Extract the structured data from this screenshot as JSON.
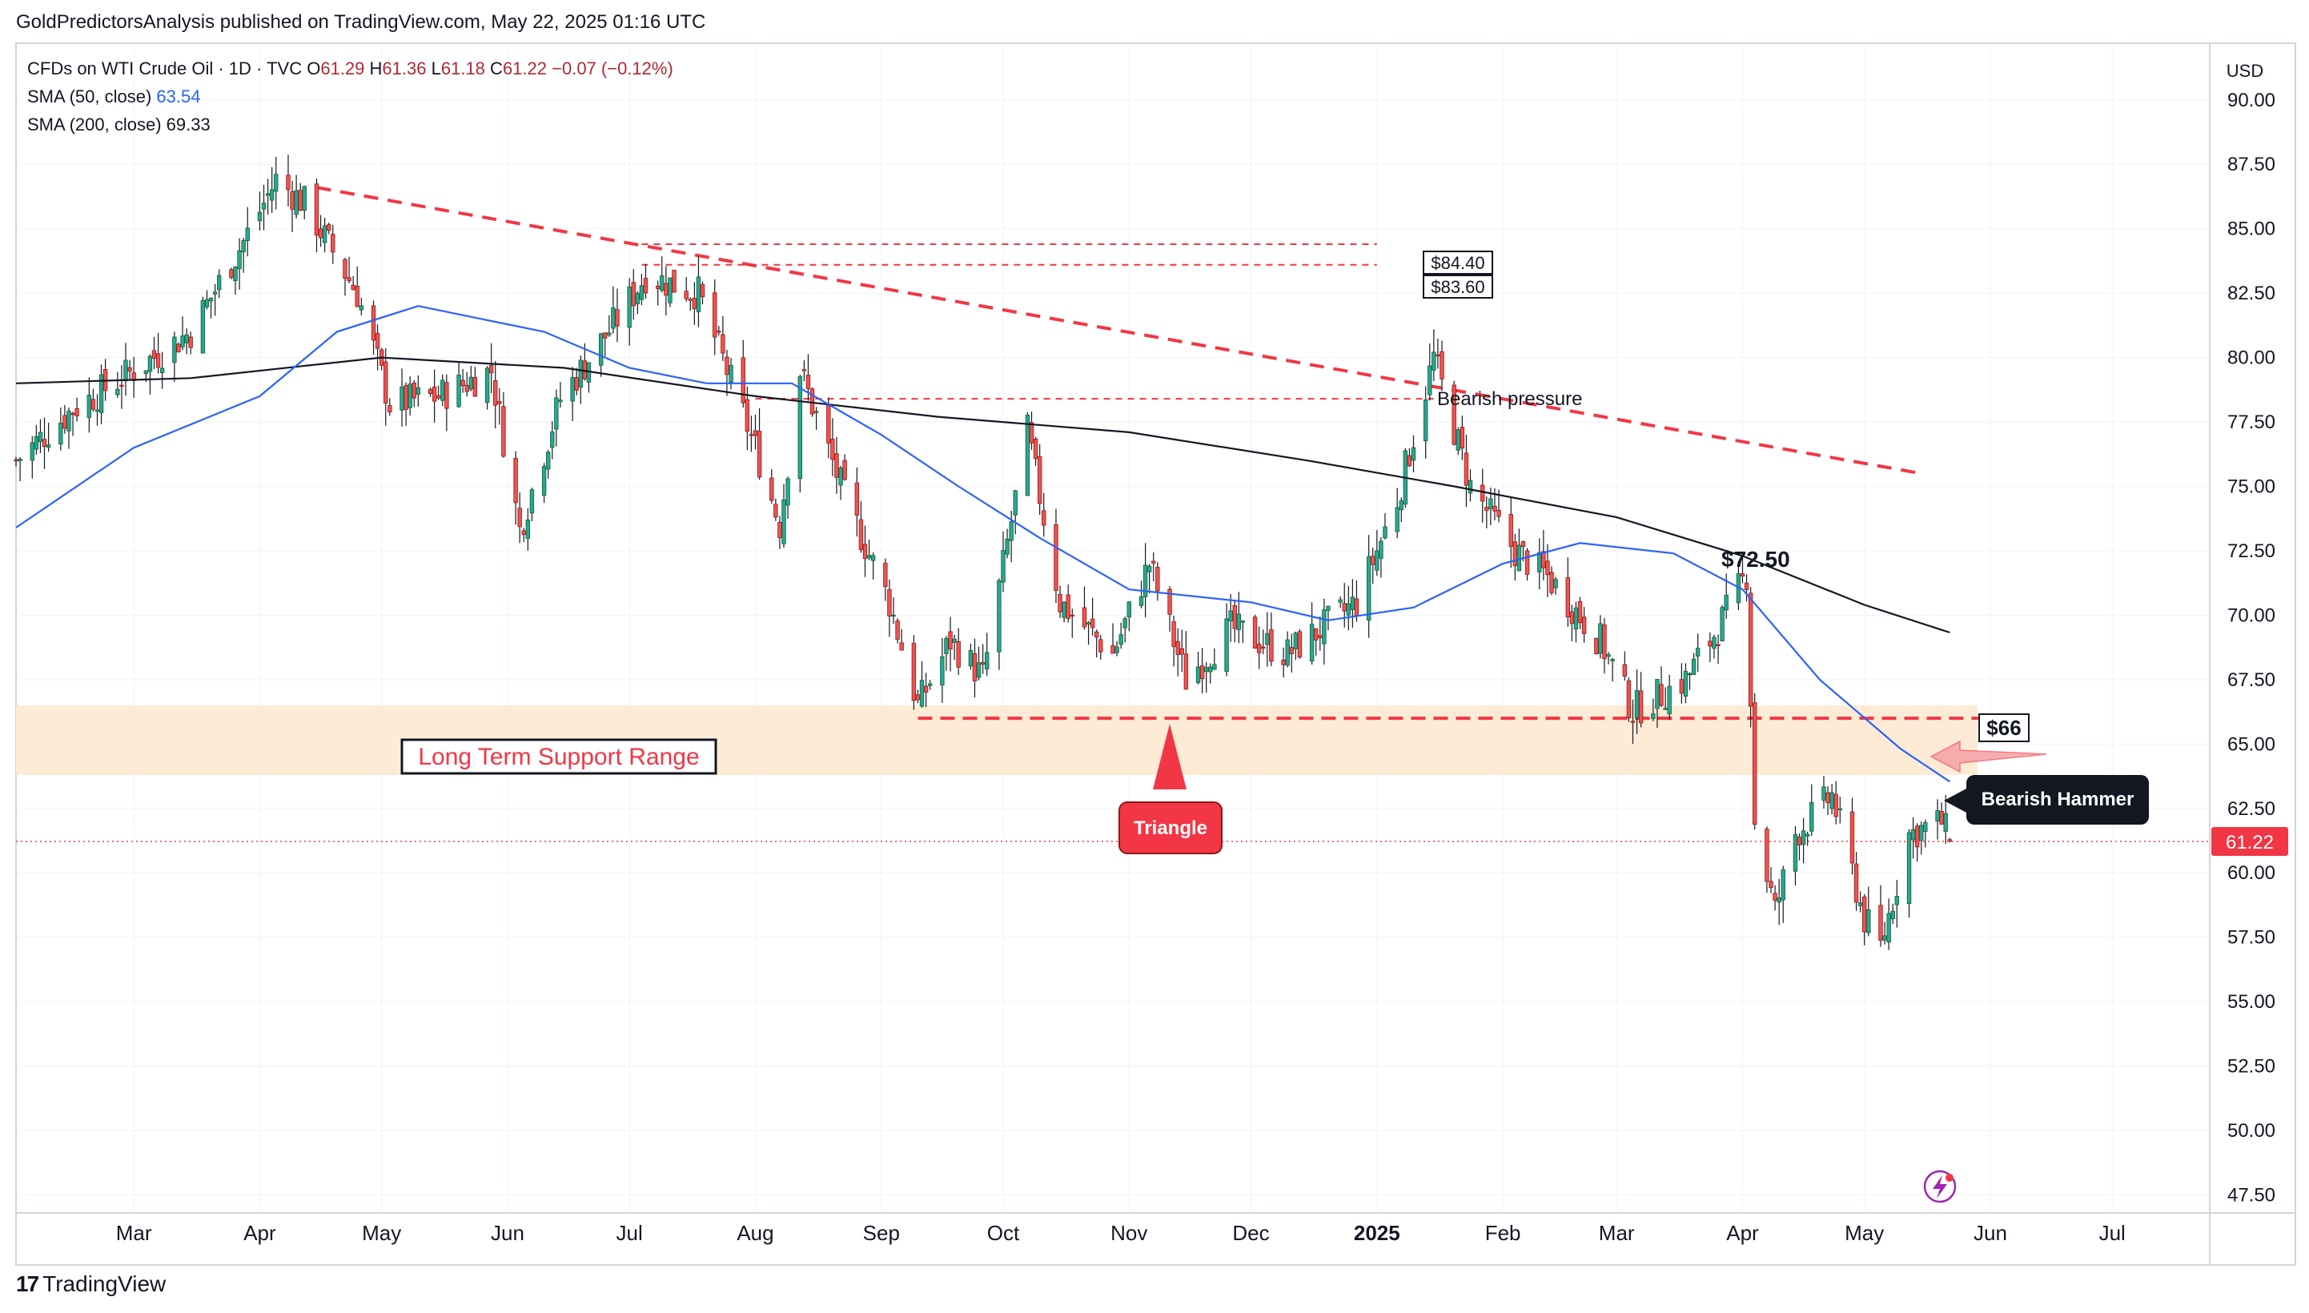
{
  "publisher": "GoldPredictorsAnalysis published on TradingView.com, May 22, 2025 01:16 UTC",
  "legend": {
    "title": "CFDs on WTI Crude Oil · 1D · TVC",
    "ohlc": {
      "o_label": "O",
      "o": "61.29",
      "h_label": "H",
      "h": "61.36",
      "l_label": "L",
      "l": "61.18",
      "c_label": "C",
      "c": "61.22",
      "change": "−0.07 (−0.12%)"
    },
    "sma50": {
      "label": "SMA (50, close)",
      "value": "63.54"
    },
    "sma200": {
      "label": "SMA (200, close)",
      "value": "69.33"
    }
  },
  "currency": "USD",
  "last_price_badge": "61.22",
  "footer": {
    "logo_mark": "17",
    "logo_text": "TradingView"
  },
  "colors": {
    "up": "#26a69a",
    "down": "#ef5350",
    "candle_border_up": "#1b5e20",
    "candle_border_down": "#8b1a1a",
    "sma50": "#2962ff",
    "sma200": "#131722",
    "trend": "#f23645",
    "zone": "#fdebd6",
    "price_badge": "#f23645",
    "axis_text": "#131722",
    "grid": "#f0f3fa"
  },
  "chart_data": {
    "type": "candlestick",
    "title": "CFDs on WTI Crude Oil · 1D · TVC",
    "x_tick_labels": [
      "Mar",
      "Apr",
      "May",
      "Jun",
      "Jul",
      "Aug",
      "Sep",
      "Oct",
      "Nov",
      "Dec",
      "2025",
      "Feb",
      "Mar",
      "Apr",
      "May",
      "Jun",
      "Jul"
    ],
    "x_tick_dates": [
      "2024-03-01",
      "2024-04-01",
      "2024-05-01",
      "2024-06-01",
      "2024-07-01",
      "2024-08-01",
      "2024-09-01",
      "2024-10-01",
      "2024-11-01",
      "2024-12-01",
      "2025-01-01",
      "2025-02-01",
      "2025-03-01",
      "2025-04-01",
      "2025-05-01",
      "2025-06-01",
      "2025-07-01"
    ],
    "x_range": [
      "2024-02-01",
      "2025-07-25"
    ],
    "y_ticks": [
      "90.00",
      "87.50",
      "85.00",
      "82.50",
      "80.00",
      "77.50",
      "75.00",
      "72.50",
      "70.00",
      "67.50",
      "65.00",
      "62.50",
      "60.00",
      "57.50",
      "55.00",
      "52.50",
      "50.00",
      "47.50"
    ],
    "ylim": [
      46.8,
      92.2
    ],
    "price_anchors": [
      {
        "date": "2024-02-01",
        "close": 76.0
      },
      {
        "date": "2024-02-15",
        "close": 78.0
      },
      {
        "date": "2024-03-01",
        "close": 79.5
      },
      {
        "date": "2024-03-15",
        "close": 81.0
      },
      {
        "date": "2024-03-28",
        "close": 84.5
      },
      {
        "date": "2024-04-05",
        "close": 86.9
      },
      {
        "date": "2024-04-12",
        "close": 86.0
      },
      {
        "date": "2024-04-25",
        "close": 82.5
      },
      {
        "date": "2024-05-03",
        "close": 78.2
      },
      {
        "date": "2024-05-15",
        "close": 78.5
      },
      {
        "date": "2024-05-28",
        "close": 79.5
      },
      {
        "date": "2024-06-04",
        "close": 73.3
      },
      {
        "date": "2024-06-14",
        "close": 78.4
      },
      {
        "date": "2024-06-28",
        "close": 81.5
      },
      {
        "date": "2024-07-05",
        "close": 83.2
      },
      {
        "date": "2024-07-18",
        "close": 82.5
      },
      {
        "date": "2024-08-01",
        "close": 76.5
      },
      {
        "date": "2024-08-07",
        "close": 73.5
      },
      {
        "date": "2024-08-12",
        "close": 79.5
      },
      {
        "date": "2024-08-23",
        "close": 74.6
      },
      {
        "date": "2024-09-03",
        "close": 70.5
      },
      {
        "date": "2024-09-10",
        "close": 66.5
      },
      {
        "date": "2024-09-18",
        "close": 69.0
      },
      {
        "date": "2024-09-26",
        "close": 67.6
      },
      {
        "date": "2024-10-07",
        "close": 77.1
      },
      {
        "date": "2024-10-15",
        "close": 70.5
      },
      {
        "date": "2024-10-28",
        "close": 68.5
      },
      {
        "date": "2024-11-06",
        "close": 72.0
      },
      {
        "date": "2024-11-15",
        "close": 67.5
      },
      {
        "date": "2024-11-26",
        "close": 69.5
      },
      {
        "date": "2024-12-10",
        "close": 68.5
      },
      {
        "date": "2024-12-27",
        "close": 70.5
      },
      {
        "date": "2025-01-06",
        "close": 74.5
      },
      {
        "date": "2025-01-15",
        "close": 80.0
      },
      {
        "date": "2025-01-24",
        "close": 75.0
      },
      {
        "date": "2025-02-04",
        "close": 72.5
      },
      {
        "date": "2025-02-12",
        "close": 71.5
      },
      {
        "date": "2025-02-25",
        "close": 69.0
      },
      {
        "date": "2025-03-05",
        "close": 66.3
      },
      {
        "date": "2025-03-18",
        "close": 67.5
      },
      {
        "date": "2025-03-26",
        "close": 69.5
      },
      {
        "date": "2025-04-02",
        "close": 71.6
      },
      {
        "date": "2025-04-04",
        "close": 62.0
      },
      {
        "date": "2025-04-09",
        "close": 58.5
      },
      {
        "date": "2025-04-14",
        "close": 61.5
      },
      {
        "date": "2025-04-23",
        "close": 63.0
      },
      {
        "date": "2025-05-01",
        "close": 58.2
      },
      {
        "date": "2025-05-05",
        "close": 57.1
      },
      {
        "date": "2025-05-12",
        "close": 61.5
      },
      {
        "date": "2025-05-20",
        "close": 62.0
      },
      {
        "date": "2025-05-22",
        "close": 61.22
      }
    ],
    "last_candle": {
      "date": "2025-05-22",
      "open": 61.29,
      "high": 61.36,
      "low": 61.18,
      "close": 61.22
    },
    "sma50": [
      {
        "date": "2024-02-01",
        "value": 73.4
      },
      {
        "date": "2024-03-01",
        "value": 76.5
      },
      {
        "date": "2024-04-01",
        "value": 78.5
      },
      {
        "date": "2024-04-20",
        "value": 81.0
      },
      {
        "date": "2024-05-10",
        "value": 82.0
      },
      {
        "date": "2024-06-10",
        "value": 81.0
      },
      {
        "date": "2024-07-01",
        "value": 79.6
      },
      {
        "date": "2024-07-20",
        "value": 79.0
      },
      {
        "date": "2024-08-10",
        "value": 79.0
      },
      {
        "date": "2024-09-01",
        "value": 77.0
      },
      {
        "date": "2024-09-20",
        "value": 75.0
      },
      {
        "date": "2024-10-10",
        "value": 73.0
      },
      {
        "date": "2024-11-01",
        "value": 71.0
      },
      {
        "date": "2024-12-01",
        "value": 70.5
      },
      {
        "date": "2024-12-20",
        "value": 69.8
      },
      {
        "date": "2025-01-10",
        "value": 70.3
      },
      {
        "date": "2025-02-01",
        "value": 72.0
      },
      {
        "date": "2025-02-20",
        "value": 72.8
      },
      {
        "date": "2025-03-15",
        "value": 72.4
      },
      {
        "date": "2025-04-01",
        "value": 71.0
      },
      {
        "date": "2025-04-20",
        "value": 67.5
      },
      {
        "date": "2025-05-10",
        "value": 64.8
      },
      {
        "date": "2025-05-22",
        "value": 63.54
      }
    ],
    "sma200": [
      {
        "date": "2024-02-01",
        "value": 79.0
      },
      {
        "date": "2024-03-15",
        "value": 79.2
      },
      {
        "date": "2024-05-01",
        "value": 80.0
      },
      {
        "date": "2024-06-15",
        "value": 79.6
      },
      {
        "date": "2024-08-01",
        "value": 78.5
      },
      {
        "date": "2024-09-15",
        "value": 77.7
      },
      {
        "date": "2024-11-01",
        "value": 77.1
      },
      {
        "date": "2024-12-15",
        "value": 76.0
      },
      {
        "date": "2025-01-20",
        "value": 75.0
      },
      {
        "date": "2025-03-01",
        "value": 73.8
      },
      {
        "date": "2025-04-01",
        "value": 72.3
      },
      {
        "date": "2025-05-01",
        "value": 70.4
      },
      {
        "date": "2025-05-22",
        "value": 69.33
      }
    ],
    "support_zone": [
      63.8,
      66.5
    ],
    "trendline": {
      "from": {
        "date": "2024-04-15",
        "price": 86.6
      },
      "to": {
        "date": "2025-05-15",
        "price": 75.5
      }
    },
    "dashed_levels": [
      {
        "from": "2024-07-04",
        "to": "2025-01-01",
        "price": 84.4
      },
      {
        "from": "2024-07-04",
        "to": "2025-01-01",
        "price": 83.6
      },
      {
        "from": "2024-08-01",
        "to": "2025-01-15",
        "price": 78.4
      },
      {
        "from": "2024-09-10",
        "to": "2025-05-30",
        "price": 66.0
      }
    ],
    "annotations": {
      "label_8440": "$84.40",
      "label_8360": "$83.60",
      "bearish_pressure": "Bearish pressure",
      "label_7250": "$72.50",
      "label_66": "$66",
      "support_range": "Long Term Support Range",
      "triangle": "Triangle",
      "bearish_hammer": "Bearish Hammer"
    }
  }
}
